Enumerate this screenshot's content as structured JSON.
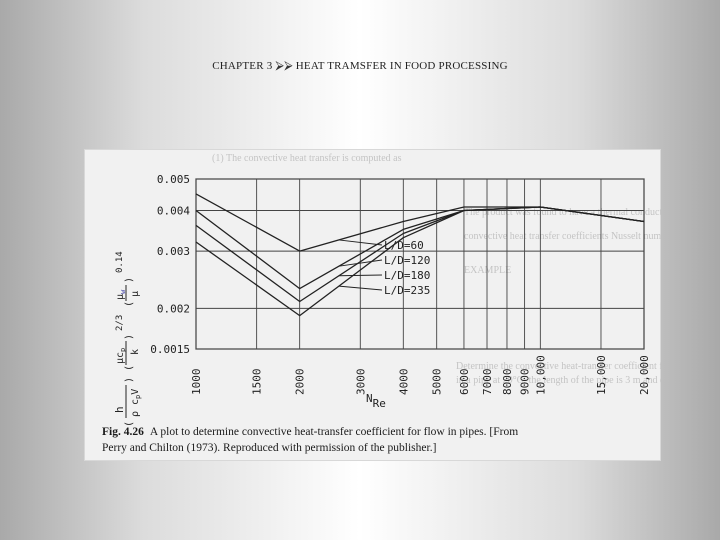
{
  "slide": {
    "header_prefix": "CHAPTER 3",
    "header_arrows": "⮚⮚",
    "header_title": "HEAT TRAMSFER IN FOOD PROCESSING"
  },
  "figure": {
    "background_text_lines": [
      "(1) The convective heat transfer is computed as",
      "The product was found to have a thermal conductivity",
      "convective heat transfer coefficients Nusselt number",
      "EXAMPLE",
      "Determine the convective heat-transfer coefficient for water flowing",
      "in a pipe at 20°C; the length of the pipe is 3 m and diameter"
    ],
    "ylabel_parts": {
      "h_frac": "h / ρ c_p V",
      "pr_frac": "μ c_p / k",
      "pr_exp": "2/3",
      "visc_frac": "μ_w / μ",
      "visc_exp": "0.14"
    },
    "xlabel": "N",
    "xlabel_sub": "Re",
    "caption_label": "Fig. 4.26",
    "caption_line1": "A plot to determine convective heat-transfer coefficient for flow in pipes. [From",
    "caption_line2": "Perry and Chilton (1973). Reproduced with permission of the publisher.]",
    "legend": [
      "L/D=60",
      "L/D=120",
      "L/D=180",
      "L/D=235"
    ]
  },
  "chart_data": {
    "type": "line",
    "x_scale": "log",
    "y_scale": "log",
    "xlim": [
      1000,
      20000
    ],
    "ylim": [
      0.0015,
      0.005
    ],
    "x_ticks": [
      1000,
      1500,
      2000,
      3000,
      4000,
      5000,
      6000,
      7000,
      8000,
      9000,
      10000,
      15000,
      20000
    ],
    "x_tick_labels": [
      "1000",
      "1500",
      "2000",
      "3000",
      "4000",
      "5000",
      "6000",
      "7000",
      "8000",
      "9000",
      "10,000",
      "15,000",
      "20,000"
    ],
    "y_ticks": [
      0.0015,
      0.002,
      0.003,
      0.004,
      0.005
    ],
    "y_tick_labels": [
      "0.0015",
      "0.002",
      "0.003",
      "0.004",
      "0.005"
    ],
    "grid": true,
    "series": [
      {
        "name": "L/D=60",
        "points": [
          [
            1000,
            0.0045
          ],
          [
            2000,
            0.003
          ],
          [
            4000,
            0.0037
          ],
          [
            6000,
            0.0041
          ],
          [
            10000,
            0.0041
          ],
          [
            20000,
            0.0037
          ]
        ]
      },
      {
        "name": "L/D=120",
        "points": [
          [
            1000,
            0.004
          ],
          [
            2000,
            0.0023
          ],
          [
            4000,
            0.0035
          ],
          [
            6000,
            0.004
          ],
          [
            10000,
            0.0041
          ],
          [
            20000,
            0.0037
          ]
        ]
      },
      {
        "name": "L/D=180",
        "points": [
          [
            1000,
            0.0036
          ],
          [
            2000,
            0.0021
          ],
          [
            4000,
            0.0034
          ],
          [
            6000,
            0.004
          ],
          [
            10000,
            0.0041
          ],
          [
            20000,
            0.0037
          ]
        ]
      },
      {
        "name": "L/D=235",
        "points": [
          [
            1000,
            0.0032
          ],
          [
            2000,
            0.0019
          ],
          [
            4000,
            0.0033
          ],
          [
            6000,
            0.004
          ],
          [
            10000,
            0.0041
          ],
          [
            20000,
            0.0037
          ]
        ]
      }
    ]
  }
}
